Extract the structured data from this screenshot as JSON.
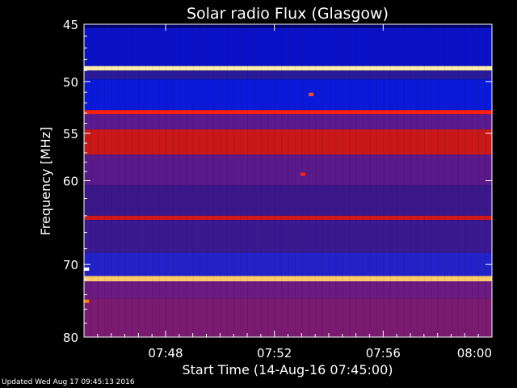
{
  "chart_data": {
    "type": "heatmap",
    "title": "Solar radio Flux (Glasgow)",
    "xlabel": "Start Time (14-Aug-16 07:45:00)",
    "ylabel": "Frequency [MHz]",
    "x_range_min": [
      0,
      15
    ],
    "x_ticks": [
      {
        "min": 3,
        "label": "07:48"
      },
      {
        "min": 7,
        "label": "07:52"
      },
      {
        "min": 11,
        "label": "07:56"
      },
      {
        "min": 15,
        "label": "08:00"
      }
    ],
    "y_range_mhz": [
      45,
      80
    ],
    "y_scale": "log",
    "y_ticks": [
      45,
      50,
      55,
      60,
      70,
      80
    ],
    "grid": false,
    "colormap": [
      "#000000",
      "#0000ff",
      "#cc0000",
      "#ff8000",
      "#ffffff"
    ],
    "bands": [
      {
        "from": 45.0,
        "to": 45.3,
        "color": "#000066"
      },
      {
        "from": 45.3,
        "to": 48.6,
        "color": "#0a12c8"
      },
      {
        "from": 48.6,
        "to": 49.0,
        "color": "#ffeeaa"
      },
      {
        "from": 49.0,
        "to": 49.8,
        "color": "#2a1a9a"
      },
      {
        "from": 49.8,
        "to": 52.7,
        "color": "#0a1ad8"
      },
      {
        "from": 52.7,
        "to": 53.1,
        "color": "#ff2010"
      },
      {
        "from": 53.1,
        "to": 54.6,
        "color": "#5a1a90"
      },
      {
        "from": 54.6,
        "to": 57.2,
        "color": "#c81818"
      },
      {
        "from": 57.2,
        "to": 60.5,
        "color": "#5a1a8a"
      },
      {
        "from": 60.5,
        "to": 64.0,
        "color": "#3a188a"
      },
      {
        "from": 64.0,
        "to": 64.5,
        "color": "#d01818"
      },
      {
        "from": 64.5,
        "to": 68.5,
        "color": "#3a1890"
      },
      {
        "from": 68.5,
        "to": 71.5,
        "color": "#2222c8"
      },
      {
        "from": 71.5,
        "to": 72.2,
        "color": "#ffcc66"
      },
      {
        "from": 72.2,
        "to": 74.5,
        "color": "#6a1a80"
      },
      {
        "from": 74.5,
        "to": 80.0,
        "color": "#7a1a70"
      }
    ],
    "features": [
      {
        "min": 8.05,
        "mhz": 59.3,
        "color": "#ff2010",
        "note": "hot spot"
      },
      {
        "min": 8.35,
        "mhz": 51.2,
        "color": "#ff5020",
        "note": "hot spot"
      },
      {
        "min": 0.1,
        "mhz": 70.6,
        "color": "#ffffff",
        "note": "hot spot"
      },
      {
        "min": 0.1,
        "mhz": 74.9,
        "color": "#ff8000",
        "note": "hot spot"
      }
    ]
  },
  "footer": {
    "updated": "Updated Wed Aug 17 09:45:13 2016"
  }
}
